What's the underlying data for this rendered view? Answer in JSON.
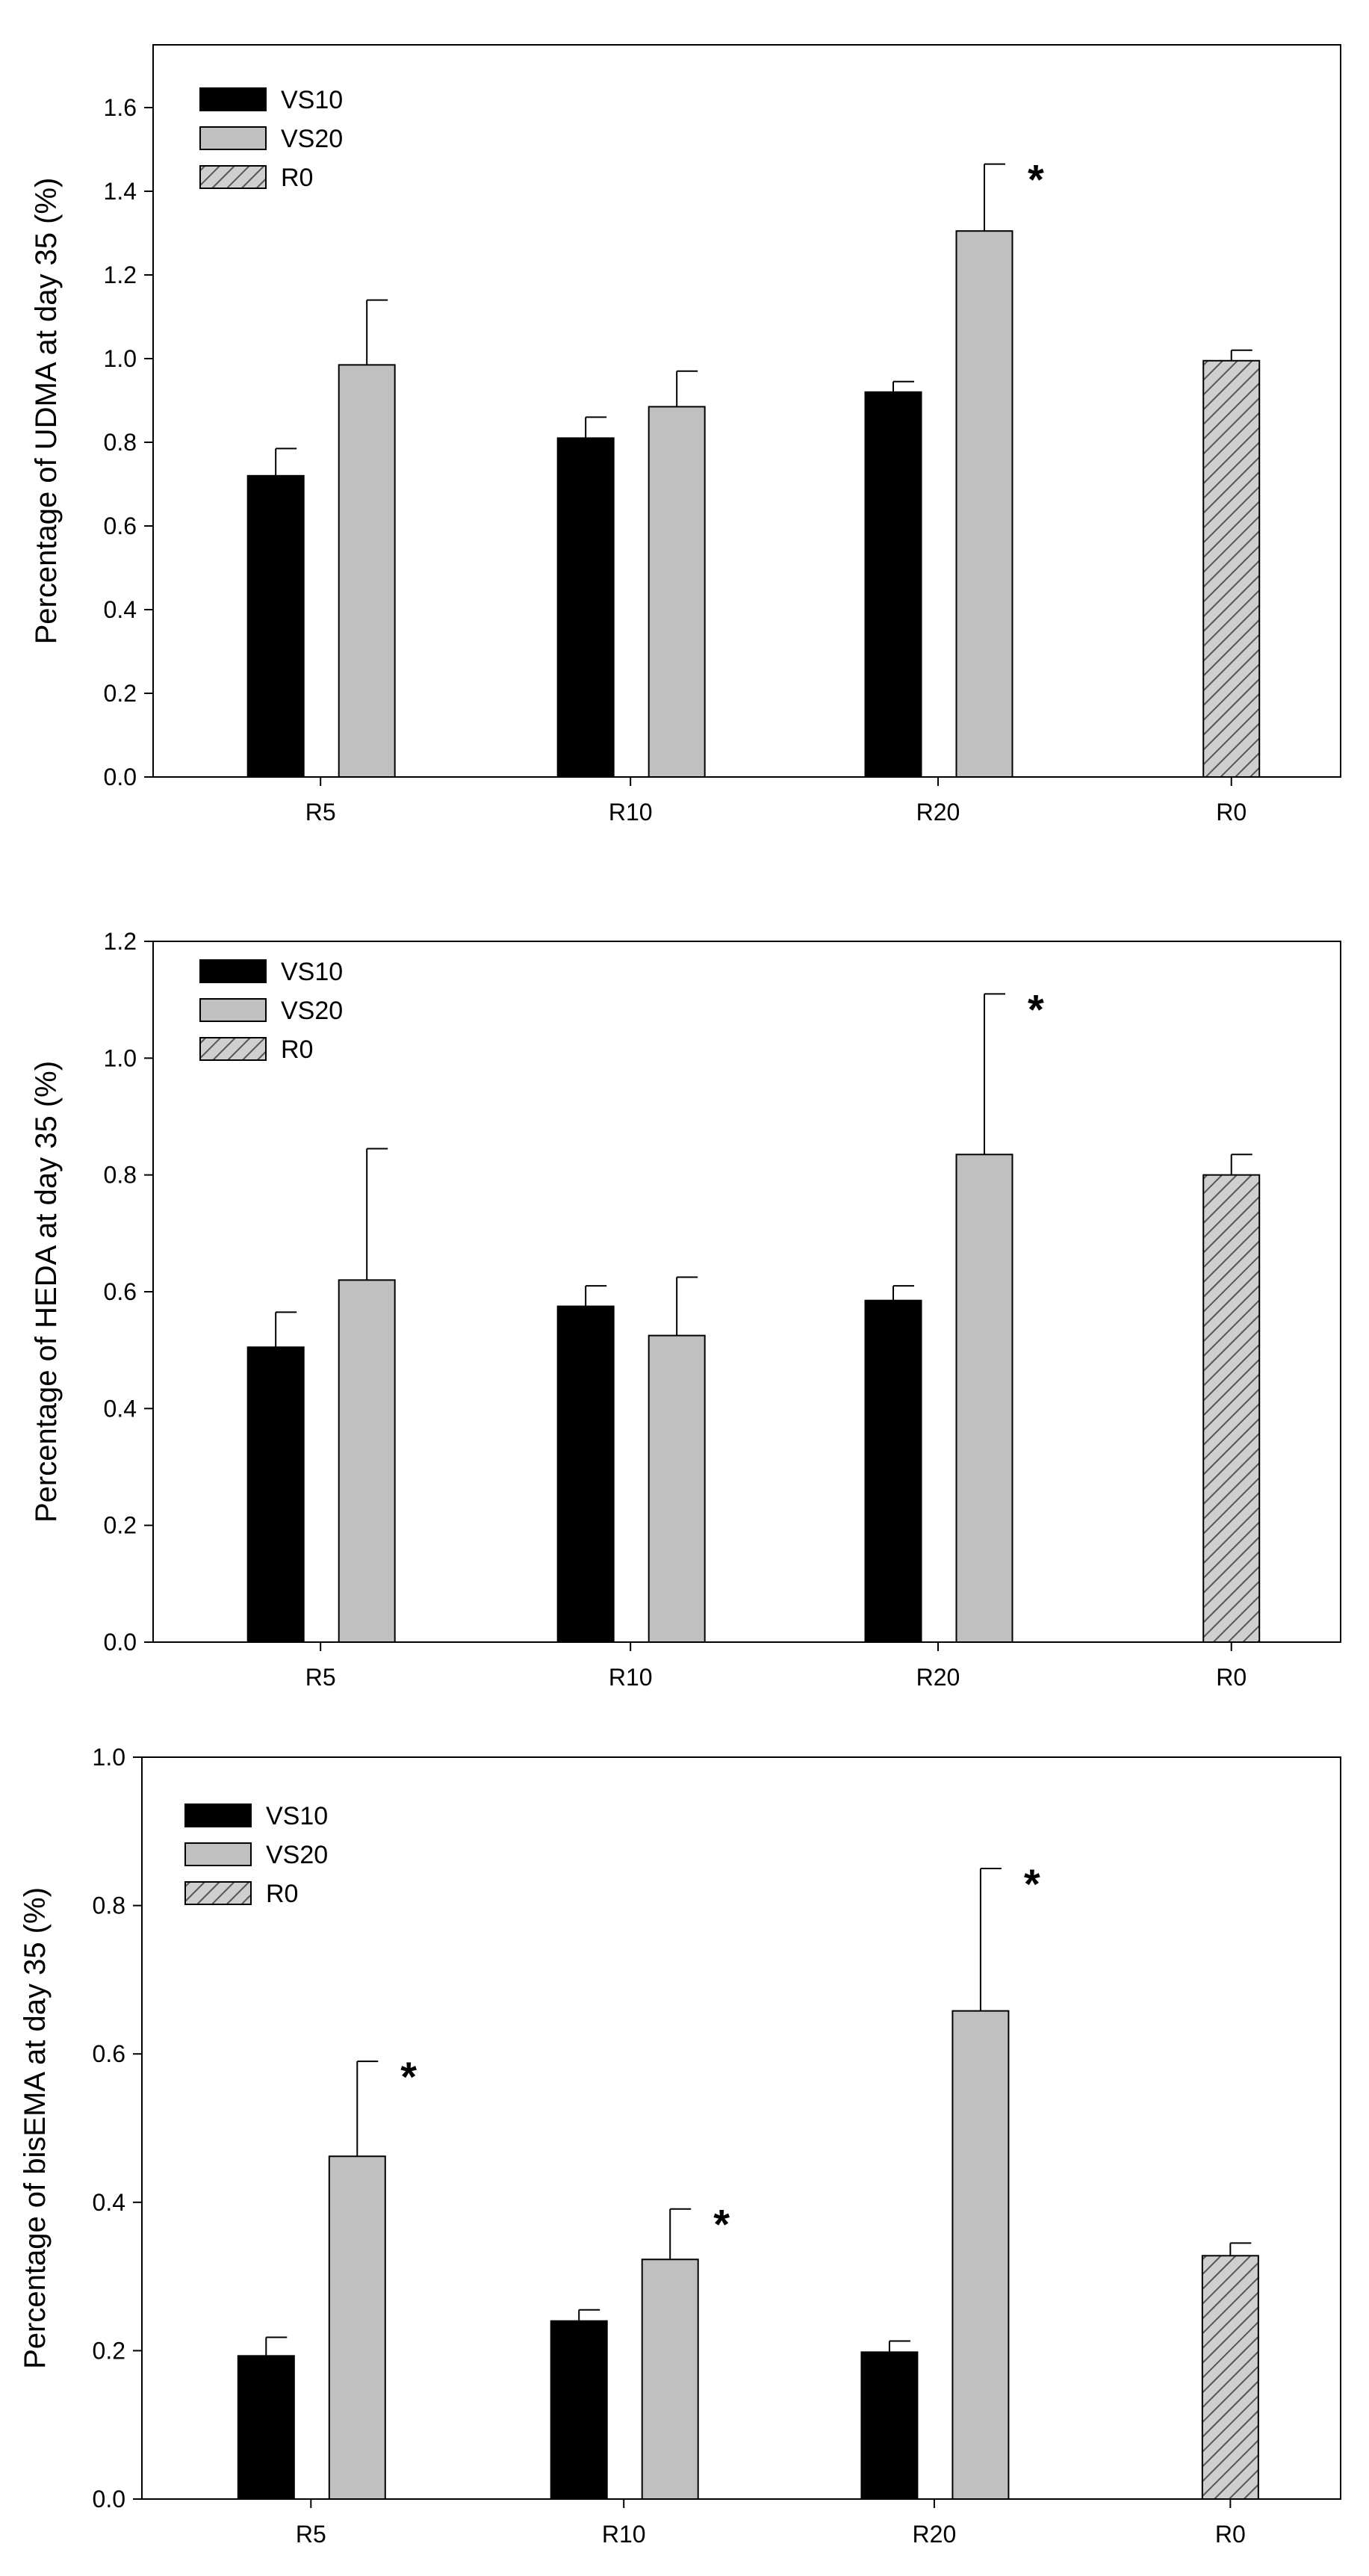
{
  "chart_data": [
    {
      "type": "bar",
      "title": "",
      "xlabel": "",
      "ylabel": "Percentage of UDMA at day 35 (%)",
      "ylim": [
        0,
        1.75
      ],
      "yticks": [
        0.0,
        0.2,
        0.4,
        0.6,
        0.8,
        1.0,
        1.2,
        1.4,
        1.6
      ],
      "ytick_labels": [
        "0.0",
        "0.2",
        "0.4",
        "0.6",
        "0.8",
        "1.0",
        "1.2",
        "1.4",
        "1.6"
      ],
      "categories": [
        "R5",
        "R10",
        "R20",
        "R0"
      ],
      "legend": [
        "VS10",
        "VS20",
        "R0"
      ],
      "legend_position": "top-left",
      "series": [
        {
          "name": "VS10",
          "color": "#000000",
          "values": [
            0.72,
            0.81,
            0.92,
            null
          ],
          "errors": [
            0.065,
            0.05,
            0.025,
            null
          ]
        },
        {
          "name": "VS20",
          "color": "#c0c0c0",
          "values": [
            0.985,
            0.885,
            1.305,
            null
          ],
          "errors": [
            0.155,
            0.085,
            0.16,
            null
          ]
        },
        {
          "name": "R0",
          "color": "#c8c8c8",
          "pattern": "hatch",
          "values": [
            null,
            null,
            null,
            0.995
          ],
          "errors": [
            null,
            null,
            null,
            0.025
          ]
        }
      ],
      "annotations": [
        {
          "text": "*",
          "category": "R20",
          "series": "VS20"
        }
      ]
    },
    {
      "type": "bar",
      "title": "",
      "xlabel": "",
      "ylabel": "Percentage of HEDA at day 35 (%)",
      "ylim": [
        0,
        1.2
      ],
      "yticks": [
        0.0,
        0.2,
        0.4,
        0.6,
        0.8,
        1.0,
        1.2
      ],
      "ytick_labels": [
        "0.0",
        "0.2",
        "0.4",
        "0.6",
        "0.8",
        "1.0",
        "1.2"
      ],
      "categories": [
        "R5",
        "R10",
        "R20",
        "R0"
      ],
      "legend": [
        "VS10",
        "VS20",
        "R0"
      ],
      "legend_position": "top-left",
      "series": [
        {
          "name": "VS10",
          "color": "#000000",
          "values": [
            0.505,
            0.575,
            0.585,
            null
          ],
          "errors": [
            0.06,
            0.035,
            0.025,
            null
          ]
        },
        {
          "name": "VS20",
          "color": "#c0c0c0",
          "values": [
            0.62,
            0.525,
            0.835,
            null
          ],
          "errors": [
            0.225,
            0.1,
            0.275,
            null
          ]
        },
        {
          "name": "R0",
          "color": "#c8c8c8",
          "pattern": "hatch",
          "values": [
            null,
            null,
            null,
            0.8
          ],
          "errors": [
            null,
            null,
            null,
            0.035
          ]
        }
      ],
      "annotations": [
        {
          "text": "*",
          "category": "R20",
          "series": "VS20"
        }
      ]
    },
    {
      "type": "bar",
      "title": "",
      "xlabel": "",
      "ylabel": "Percentage of bisEMA at day 35 (%)",
      "ylim": [
        0,
        1.0
      ],
      "yticks": [
        0.0,
        0.2,
        0.4,
        0.6,
        0.8,
        1.0
      ],
      "ytick_labels": [
        "0.0",
        "0.2",
        "0.4",
        "0.6",
        "0.8",
        "1.0"
      ],
      "categories": [
        "R5",
        "R10",
        "R20",
        "R0"
      ],
      "legend": [
        "VS10",
        "VS20",
        "R0"
      ],
      "legend_position": "top-left",
      "series": [
        {
          "name": "VS10",
          "color": "#000000",
          "values": [
            0.193,
            0.24,
            0.198,
            null
          ],
          "errors": [
            0.025,
            0.015,
            0.015,
            null
          ]
        },
        {
          "name": "VS20",
          "color": "#c0c0c0",
          "values": [
            0.462,
            0.323,
            0.658,
            null
          ],
          "errors": [
            0.128,
            0.068,
            0.192,
            null
          ]
        },
        {
          "name": "R0",
          "color": "#c8c8c8",
          "pattern": "hatch",
          "values": [
            null,
            null,
            null,
            0.328
          ],
          "errors": [
            null,
            null,
            null,
            0.017
          ]
        }
      ],
      "annotations": [
        {
          "text": "*",
          "category": "R5",
          "series": "VS20"
        },
        {
          "text": "*",
          "category": "R10",
          "series": "VS20"
        },
        {
          "text": "*",
          "category": "R20",
          "series": "VS20"
        }
      ]
    }
  ]
}
